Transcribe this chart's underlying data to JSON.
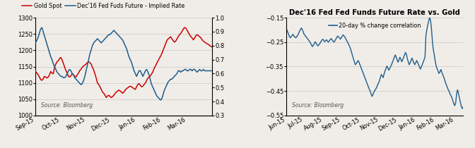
{
  "chart1": {
    "legend": [
      "Gold Spot",
      "Dec'16 Fed Fuds Future - Implied Rate"
    ],
    "legend_colors": [
      "#cc0000",
      "#1f5c8b"
    ],
    "source_text": "Source: Bloomberg",
    "xlabels": [
      "Sep-15",
      "Oct-15",
      "Nov-15",
      "Dec-15",
      "Jan-16",
      "Feb-16",
      "Mar-16"
    ],
    "ylim_left": [
      1000,
      1300
    ],
    "ylim_right": [
      0.3,
      1.0
    ],
    "yticks_left": [
      1000,
      1050,
      1100,
      1150,
      1200,
      1250,
      1300
    ],
    "yticks_right": [
      0.3,
      0.4,
      0.5,
      0.6,
      0.7,
      0.8,
      0.9,
      1.0
    ],
    "gold_y": [
      1135,
      1130,
      1125,
      1118,
      1110,
      1108,
      1112,
      1120,
      1118,
      1115,
      1118,
      1125,
      1135,
      1130,
      1128,
      1148,
      1158,
      1165,
      1168,
      1175,
      1178,
      1170,
      1160,
      1148,
      1138,
      1130,
      1120,
      1118,
      1122,
      1128,
      1125,
      1120,
      1118,
      1125,
      1130,
      1138,
      1142,
      1148,
      1152,
      1155,
      1158,
      1162,
      1165,
      1162,
      1158,
      1148,
      1140,
      1128,
      1115,
      1100,
      1095,
      1088,
      1080,
      1072,
      1068,
      1062,
      1055,
      1060,
      1062,
      1058,
      1055,
      1058,
      1062,
      1068,
      1072,
      1075,
      1078,
      1075,
      1072,
      1068,
      1072,
      1078,
      1082,
      1085,
      1088,
      1090,
      1088,
      1085,
      1082,
      1080,
      1088,
      1095,
      1098,
      1092,
      1088,
      1090,
      1095,
      1100,
      1108,
      1115,
      1118,
      1122,
      1128,
      1135,
      1145,
      1152,
      1160,
      1168,
      1175,
      1182,
      1190,
      1200,
      1210,
      1220,
      1230,
      1235,
      1238,
      1242,
      1235,
      1230,
      1225,
      1228,
      1235,
      1242,
      1248,
      1252,
      1258,
      1265,
      1270,
      1268,
      1262,
      1255,
      1248,
      1242,
      1238,
      1232,
      1238,
      1245,
      1248,
      1245,
      1242,
      1238,
      1232,
      1228,
      1225,
      1222,
      1220,
      1218,
      1215,
      1212,
      1210
    ],
    "fed_y": [
      0.82,
      0.84,
      0.86,
      0.89,
      0.92,
      0.93,
      0.9,
      0.87,
      0.84,
      0.81,
      0.78,
      0.75,
      0.72,
      0.7,
      0.67,
      0.65,
      0.63,
      0.61,
      0.6,
      0.59,
      0.58,
      0.58,
      0.57,
      0.57,
      0.58,
      0.6,
      0.62,
      0.63,
      0.62,
      0.6,
      0.59,
      0.57,
      0.56,
      0.55,
      0.54,
      0.53,
      0.52,
      0.53,
      0.55,
      0.58,
      0.62,
      0.66,
      0.7,
      0.74,
      0.77,
      0.8,
      0.82,
      0.83,
      0.84,
      0.85,
      0.84,
      0.83,
      0.82,
      0.83,
      0.84,
      0.85,
      0.86,
      0.87,
      0.88,
      0.88,
      0.89,
      0.9,
      0.91,
      0.9,
      0.89,
      0.88,
      0.87,
      0.86,
      0.85,
      0.84,
      0.82,
      0.8,
      0.78,
      0.75,
      0.72,
      0.7,
      0.68,
      0.65,
      0.62,
      0.6,
      0.58,
      0.6,
      0.62,
      0.62,
      0.6,
      0.58,
      0.6,
      0.62,
      0.63,
      0.61,
      0.59,
      0.55,
      0.52,
      0.5,
      0.48,
      0.46,
      0.44,
      0.43,
      0.42,
      0.41,
      0.42,
      0.45,
      0.48,
      0.5,
      0.52,
      0.54,
      0.55,
      0.56,
      0.56,
      0.57,
      0.58,
      0.59,
      0.6,
      0.62,
      0.62,
      0.61,
      0.62,
      0.62,
      0.63,
      0.63,
      0.62,
      0.62,
      0.63,
      0.63,
      0.62,
      0.63,
      0.63,
      0.62,
      0.61,
      0.62,
      0.63,
      0.62,
      0.62,
      0.63,
      0.62,
      0.62,
      0.62,
      0.62,
      0.62,
      0.62,
      0.62
    ],
    "xtick_positions": [
      0,
      20,
      40,
      60,
      80,
      100,
      120
    ],
    "n_points": 141
  },
  "chart2": {
    "title": "Dec'16 Fed Fed Funds Future Rate vs. Gold",
    "subtitle": "20-day % change correlation",
    "source_text": "Source: Bloomberg",
    "xlabels": [
      "Jun-15",
      "Jul-15",
      "Aug-15",
      "Sep-15",
      "Oct-15",
      "Nov-15",
      "Dec-15",
      "Jan-16",
      "Feb-16",
      "Mar-16"
    ],
    "ylim": [
      -0.55,
      -0.15
    ],
    "yticks": [
      -0.55,
      -0.45,
      -0.35,
      -0.25,
      -0.15
    ],
    "corr_y": [
      -0.195,
      -0.205,
      -0.215,
      -0.225,
      -0.232,
      -0.228,
      -0.222,
      -0.218,
      -0.225,
      -0.228,
      -0.232,
      -0.228,
      -0.222,
      -0.215,
      -0.205,
      -0.198,
      -0.192,
      -0.198,
      -0.208,
      -0.218,
      -0.222,
      -0.228,
      -0.232,
      -0.238,
      -0.242,
      -0.248,
      -0.255,
      -0.262,
      -0.268,
      -0.262,
      -0.255,
      -0.248,
      -0.255,
      -0.262,
      -0.265,
      -0.26,
      -0.255,
      -0.248,
      -0.242,
      -0.238,
      -0.242,
      -0.248,
      -0.245,
      -0.24,
      -0.245,
      -0.25,
      -0.245,
      -0.24,
      -0.235,
      -0.24,
      -0.245,
      -0.25,
      -0.245,
      -0.238,
      -0.232,
      -0.225,
      -0.228,
      -0.232,
      -0.238,
      -0.232,
      -0.225,
      -0.22,
      -0.225,
      -0.23,
      -0.238,
      -0.245,
      -0.252,
      -0.26,
      -0.268,
      -0.278,
      -0.292,
      -0.305,
      -0.318,
      -0.33,
      -0.342,
      -0.338,
      -0.332,
      -0.325,
      -0.332,
      -0.342,
      -0.352,
      -0.362,
      -0.372,
      -0.382,
      -0.392,
      -0.402,
      -0.412,
      -0.422,
      -0.432,
      -0.442,
      -0.45,
      -0.462,
      -0.472,
      -0.465,
      -0.455,
      -0.448,
      -0.442,
      -0.435,
      -0.425,
      -0.418,
      -0.408,
      -0.395,
      -0.382,
      -0.388,
      -0.395,
      -0.38,
      -0.368,
      -0.358,
      -0.348,
      -0.355,
      -0.365,
      -0.358,
      -0.35,
      -0.342,
      -0.332,
      -0.322,
      -0.312,
      -0.302,
      -0.312,
      -0.322,
      -0.332,
      -0.322,
      -0.312,
      -0.32,
      -0.33,
      -0.322,
      -0.312,
      -0.302,
      -0.292,
      -0.3,
      -0.318,
      -0.33,
      -0.342,
      -0.335,
      -0.325,
      -0.315,
      -0.325,
      -0.335,
      -0.342,
      -0.335,
      -0.325,
      -0.332,
      -0.342,
      -0.35,
      -0.36,
      -0.352,
      -0.342,
      -0.332,
      -0.322,
      -0.312,
      -0.222,
      -0.198,
      -0.178,
      -0.162,
      -0.148,
      -0.162,
      -0.198,
      -0.248,
      -0.282,
      -0.302,
      -0.328,
      -0.348,
      -0.358,
      -0.368,
      -0.378,
      -0.372,
      -0.362,
      -0.372,
      -0.382,
      -0.392,
      -0.402,
      -0.415,
      -0.425,
      -0.435,
      -0.445,
      -0.452,
      -0.462,
      -0.47,
      -0.478,
      -0.49,
      -0.502,
      -0.51,
      -0.498,
      -0.462,
      -0.445,
      -0.46,
      -0.478,
      -0.495,
      -0.512,
      -0.522,
      -0.515
    ],
    "xtick_positions": [
      0,
      19,
      40,
      59,
      80,
      100,
      120,
      140,
      160,
      181
    ],
    "n_points": 191,
    "line_color": "#1f5c8b"
  }
}
